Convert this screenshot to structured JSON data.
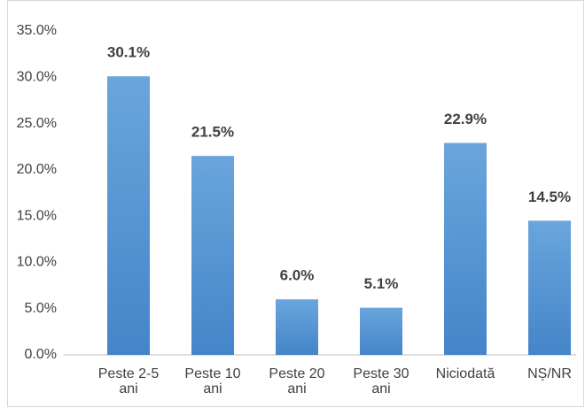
{
  "chart_data": {
    "type": "bar",
    "categories": [
      "Peste 2-5 ani",
      "Peste 10 ani",
      "Peste 20 ani",
      "Peste 30 ani",
      "Niciodată",
      "NȘ/NR"
    ],
    "values": [
      30.1,
      21.5,
      6.0,
      5.1,
      22.9,
      14.5
    ],
    "value_labels": [
      "30.1%",
      "21.5%",
      "6.0%",
      "5.1%",
      "22.9%",
      "14.5%"
    ],
    "color": "#5b9bd5",
    "ylim": [
      0,
      35
    ],
    "yticks": [
      {
        "value": 0,
        "label": "0.0%"
      },
      {
        "value": 5,
        "label": "5.0%"
      },
      {
        "value": 10,
        "label": "10.0%"
      },
      {
        "value": 15,
        "label": "15.0%"
      },
      {
        "value": 20,
        "label": "20.0%"
      },
      {
        "value": 25,
        "label": "25.0%"
      },
      {
        "value": 30,
        "label": "30.0%"
      },
      {
        "value": 35,
        "label": "35.0%"
      }
    ],
    "grid": false
  }
}
